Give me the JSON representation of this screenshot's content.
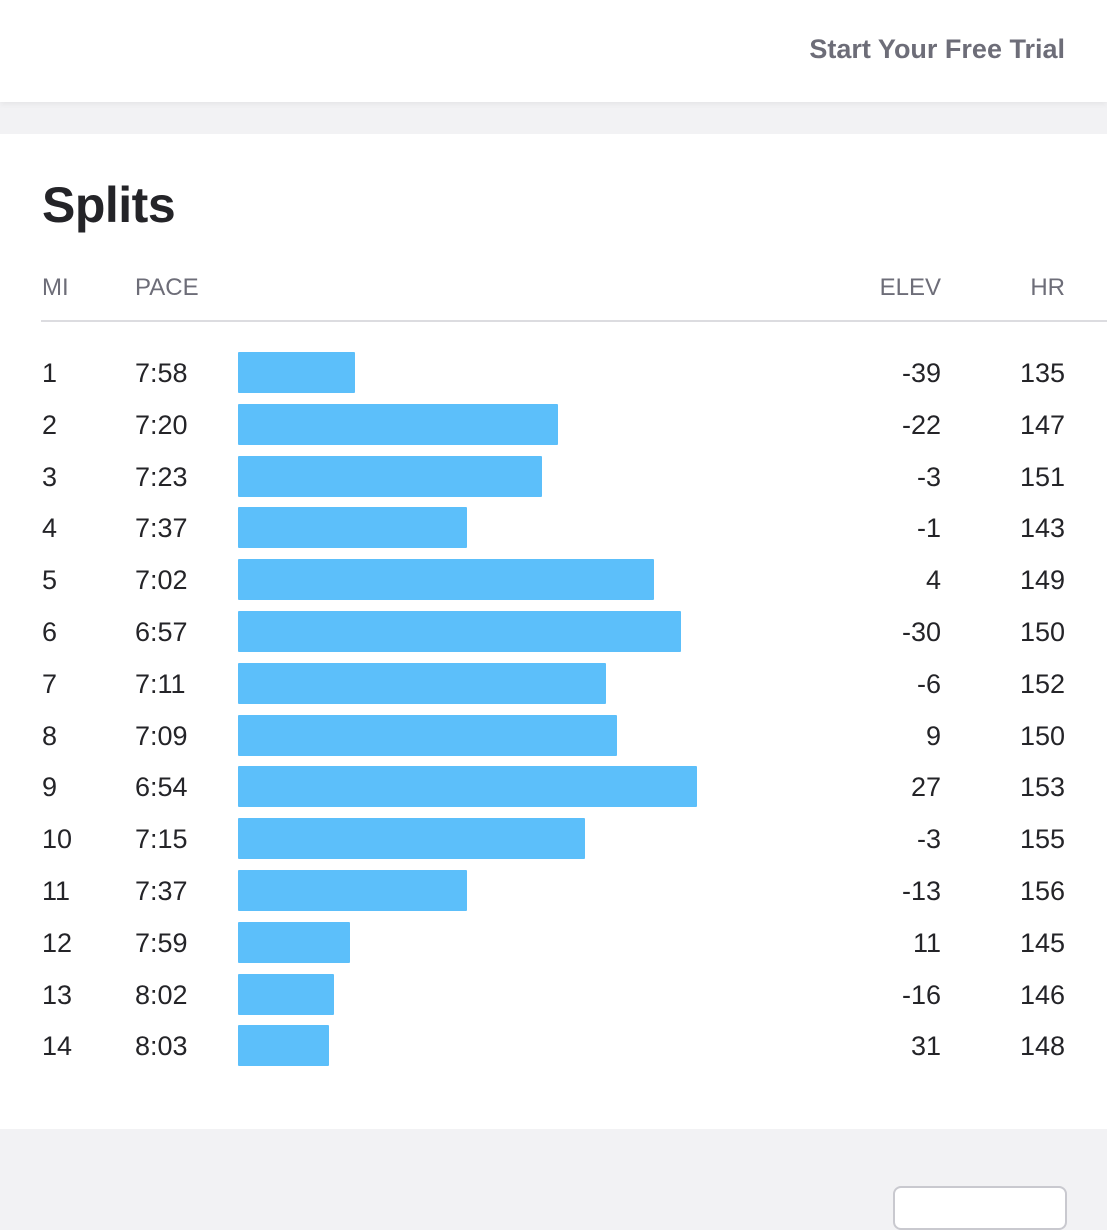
{
  "header": {
    "cta_label": "Start Your Free Trial"
  },
  "splits": {
    "title": "Splits",
    "columns": {
      "mi": "MI",
      "pace": "PACE",
      "elev": "ELEV",
      "hr": "HR"
    },
    "bar_color": "#5cbffa",
    "rows": [
      {
        "mi": "1",
        "pace": "7:58",
        "elev": "-39",
        "hr": "135",
        "pace_seconds": 478
      },
      {
        "mi": "2",
        "pace": "7:20",
        "elev": "-22",
        "hr": "147",
        "pace_seconds": 440
      },
      {
        "mi": "3",
        "pace": "7:23",
        "elev": "-3",
        "hr": "151",
        "pace_seconds": 443
      },
      {
        "mi": "4",
        "pace": "7:37",
        "elev": "-1",
        "hr": "143",
        "pace_seconds": 457
      },
      {
        "mi": "5",
        "pace": "7:02",
        "elev": "4",
        "hr": "149",
        "pace_seconds": 422
      },
      {
        "mi": "6",
        "pace": "6:57",
        "elev": "-30",
        "hr": "150",
        "pace_seconds": 417
      },
      {
        "mi": "7",
        "pace": "7:11",
        "elev": "-6",
        "hr": "152",
        "pace_seconds": 431
      },
      {
        "mi": "8",
        "pace": "7:09",
        "elev": "9",
        "hr": "150",
        "pace_seconds": 429
      },
      {
        "mi": "9",
        "pace": "6:54",
        "elev": "27",
        "hr": "153",
        "pace_seconds": 414
      },
      {
        "mi": "10",
        "pace": "7:15",
        "elev": "-3",
        "hr": "155",
        "pace_seconds": 435
      },
      {
        "mi": "11",
        "pace": "7:37",
        "elev": "-13",
        "hr": "156",
        "pace_seconds": 457
      },
      {
        "mi": "12",
        "pace": "7:59",
        "elev": "11",
        "hr": "145",
        "pace_seconds": 479
      },
      {
        "mi": "13",
        "pace": "8:02",
        "elev": "-16",
        "hr": "146",
        "pace_seconds": 482
      },
      {
        "mi": "14",
        "pace": "8:03",
        "elev": "31",
        "hr": "148",
        "pace_seconds": 483
      }
    ]
  }
}
